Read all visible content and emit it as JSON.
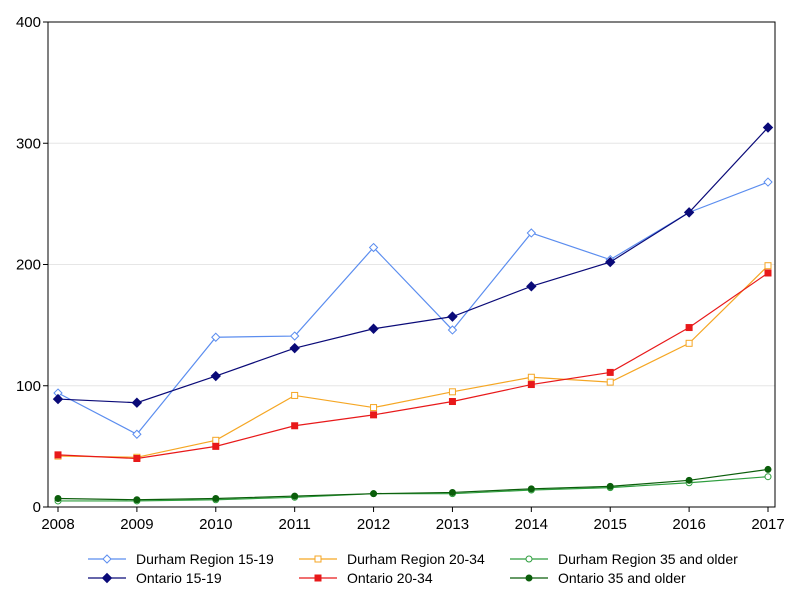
{
  "chart_data": {
    "type": "line",
    "title": "",
    "xlabel": "",
    "ylabel": "",
    "x": [
      2008,
      2009,
      2010,
      2011,
      2012,
      2013,
      2014,
      2015,
      2016,
      2017
    ],
    "ylim": [
      0,
      400
    ],
    "yticks": [
      0,
      100,
      200,
      300,
      400
    ],
    "grid": true,
    "legend_position": "bottom",
    "series": [
      {
        "name": "Durham Region 15-19",
        "color": "#5B8DEF",
        "marker": "diamond-open",
        "values": [
          94,
          60,
          140,
          141,
          214,
          146,
          226,
          204,
          243,
          268
        ]
      },
      {
        "name": "Durham Region 20-34",
        "color": "#F5A623",
        "marker": "square-open",
        "values": [
          42,
          41,
          55,
          92,
          82,
          95,
          107,
          103,
          135,
          199
        ]
      },
      {
        "name": "Durham Region 35 and older",
        "color": "#2E9E3E",
        "marker": "circle-open",
        "values": [
          5,
          5,
          6,
          8,
          11,
          11,
          14,
          16,
          20,
          25
        ]
      },
      {
        "name": "Ontario 15-19",
        "color": "#0A0A78",
        "marker": "diamond-filled",
        "values": [
          89,
          86,
          108,
          131,
          147,
          157,
          182,
          202,
          243,
          313
        ]
      },
      {
        "name": "Ontario 20-34",
        "color": "#E8191A",
        "marker": "square-filled",
        "values": [
          43,
          40,
          50,
          67,
          76,
          87,
          101,
          111,
          148,
          193
        ]
      },
      {
        "name": "Ontario 35 and older",
        "color": "#0B5E0B",
        "marker": "circle-filled",
        "values": [
          7,
          6,
          7,
          9,
          11,
          12,
          15,
          17,
          22,
          31
        ]
      }
    ]
  }
}
